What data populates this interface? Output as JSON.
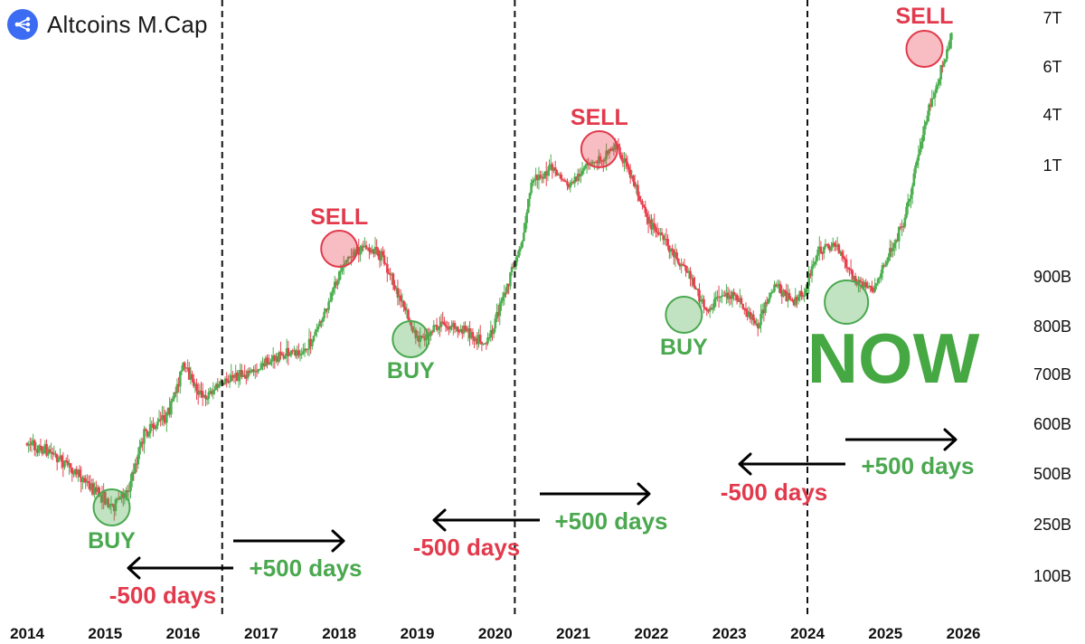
{
  "header": {
    "title": "Altcoins M.Cap",
    "logo_icon": "network-logo-icon"
  },
  "colors": {
    "up": "#4caf50",
    "down": "#e8414f",
    "buy": "#4aa84f",
    "sell": "#e23a4c",
    "now": "#46a843",
    "axis_text": "#111111"
  },
  "chart_data": {
    "type": "candlestick",
    "title": "Altcoins M.Cap",
    "x_ticks": [
      "2014",
      "2015",
      "2016",
      "2017",
      "2018",
      "2019",
      "2020",
      "2021",
      "2022",
      "2023",
      "2024",
      "2025",
      "2026"
    ],
    "y_ticks": [
      "7T",
      "6T",
      "4T",
      "1T",
      "900B",
      "800B",
      "700B",
      "600B",
      "500B",
      "250B",
      "100B"
    ],
    "cycle_markers": [
      "2016-07",
      "2020-04",
      "2024-01"
    ],
    "signals": [
      {
        "type": "BUY",
        "date": "2015-02"
      },
      {
        "type": "SELL",
        "date": "2018-01"
      },
      {
        "type": "BUY",
        "date": "2018-12"
      },
      {
        "type": "SELL",
        "date": "2021-05"
      },
      {
        "type": "BUY",
        "date": "2022-06"
      },
      {
        "type": "BUY",
        "date": "2024-07"
      },
      {
        "type": "SELL",
        "date": "2025-07"
      }
    ],
    "arrows": [
      {
        "label": "-500 days",
        "direction": "left",
        "color": "red"
      },
      {
        "label": "+500 days",
        "direction": "right",
        "color": "green"
      },
      {
        "label": "-500 days",
        "direction": "left",
        "color": "red"
      },
      {
        "label": "+500 days",
        "direction": "right",
        "color": "green"
      },
      {
        "label": "-500 days",
        "direction": "left",
        "color": "red"
      },
      {
        "label": "+500 days",
        "direction": "right",
        "color": "green"
      }
    ],
    "now_label": "NOW"
  }
}
